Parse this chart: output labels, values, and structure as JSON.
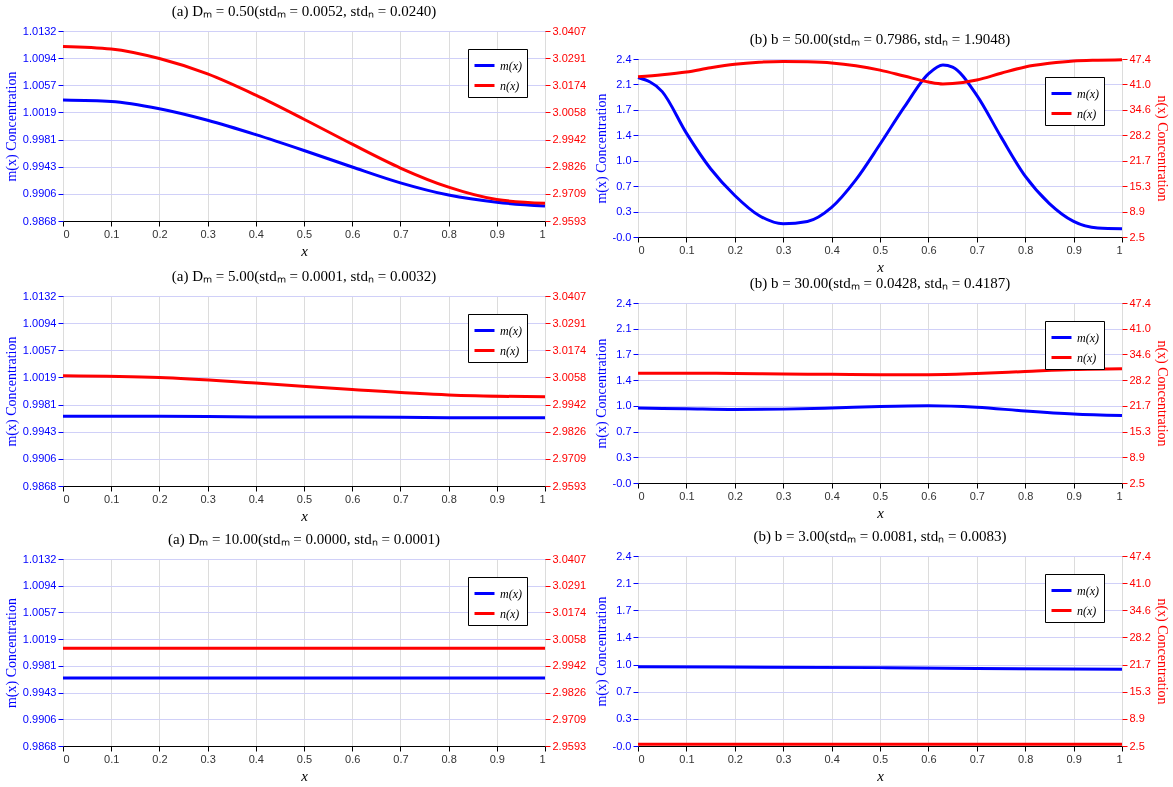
{
  "chart_data": [
    {
      "type": "line",
      "title": "(a) Dₘ = 0.50(stdₘ = 0.0052, stdₙ = 0.0240)",
      "xlabel": "x",
      "ylabel": "m(x) Concentration",
      "xlim": [
        0,
        1
      ],
      "xticks": [
        0,
        0.1,
        0.2,
        0.3,
        0.4,
        0.5,
        0.6,
        0.7,
        0.8,
        0.9,
        1
      ],
      "ylim": [
        0.9868,
        1.0132
      ],
      "yticks": [
        0.9868,
        {
          "value": 0.99057,
          "label": "0.9906"
        },
        {
          "value": 0.99434,
          "label": "0.9943"
        },
        {
          "value": 0.99811,
          "label": "0.9981"
        },
        {
          "value": 1.00189,
          "label": "1.0019"
        },
        {
          "value": 1.00566,
          "label": "1.0057"
        },
        {
          "value": 1.00943,
          "label": "1.0094"
        },
        1.0132
      ],
      "y2lim": [
        2.9593,
        3.0407
      ],
      "y2ticks": [
        2.9593,
        {
          "value": 2.97093,
          "label": "2.9709"
        },
        {
          "value": 2.98256,
          "label": "2.9826"
        },
        {
          "value": 2.99419,
          "label": "2.9942"
        },
        {
          "value": 3.00581,
          "label": "3.0058"
        },
        {
          "value": 3.01744,
          "label": "3.0174"
        },
        {
          "value": 3.02907,
          "label": "3.0291"
        },
        3.0407
      ],
      "grid": true,
      "legend": "top right",
      "x": [
        0,
        0.1,
        0.2,
        0.3,
        0.4,
        0.5,
        0.6,
        0.7,
        0.8,
        0.9,
        1
      ],
      "series": [
        {
          "name": "m(x)",
          "color": "#0000ff",
          "values": [
            1.0036,
            1.0034,
            1.0024,
            1.0008,
            0.9988,
            0.9966,
            0.9943,
            0.9921,
            0.9904,
            0.9894,
            0.9889
          ]
        },
        {
          "name": "n(x)",
          "color": "#ff0000",
          "axis": "y2",
          "values": [
            3.0341,
            3.033,
            3.0289,
            3.0223,
            3.0132,
            3.0029,
            2.9922,
            2.982,
            2.9738,
            2.9685,
            2.9669
          ]
        }
      ]
    },
    {
      "type": "line",
      "title": "(b) b = 50.00(stdₘ = 0.7986, stdₙ = 1.9048)",
      "xlabel": "x",
      "ylabel": "m(x) Concentration",
      "y2label": "n(x) Concentration",
      "xlim": [
        0,
        1
      ],
      "xticks": [
        0,
        0.1,
        0.2,
        0.3,
        0.4,
        0.5,
        0.6,
        0.7,
        0.8,
        0.9,
        1
      ],
      "ylim": [
        0,
        2.4
      ],
      "yticks": [
        {
          "value": 0,
          "label": "-0.0"
        },
        {
          "value": 0.34286,
          "label": "0.3"
        },
        {
          "value": 0.68571,
          "label": "0.7"
        },
        {
          "value": 1.02857,
          "label": "1.0"
        },
        {
          "value": 1.37143,
          "label": "1.4"
        },
        {
          "value": 1.71429,
          "label": "1.7"
        },
        {
          "value": 2.05714,
          "label": "2.1"
        },
        2.4
      ],
      "y2lim": [
        2.5,
        47.4
      ],
      "y2ticks": [
        2.5,
        {
          "value": 8.91429,
          "label": "8.9"
        },
        {
          "value": 15.32857,
          "label": "15.3"
        },
        {
          "value": 21.74286,
          "label": "21.7"
        },
        {
          "value": 28.15714,
          "label": "28.2"
        },
        {
          "value": 34.57143,
          "label": "34.6"
        },
        {
          "value": 40.98571,
          "label": "41.0"
        },
        47.4
      ],
      "grid": true,
      "legend": "top right",
      "x": [
        0,
        0.05,
        0.1,
        0.15,
        0.2,
        0.25,
        0.3,
        0.35,
        0.4,
        0.45,
        0.5,
        0.55,
        0.6,
        0.63,
        0.65,
        0.7,
        0.75,
        0.8,
        0.85,
        0.9,
        0.95,
        1
      ],
      "series": [
        {
          "name": "m(x)",
          "color": "#0000ff",
          "values": [
            2.15,
            1.96,
            1.4,
            0.92,
            0.56,
            0.29,
            0.18,
            0.21,
            0.4,
            0.77,
            1.25,
            1.75,
            2.2,
            2.32,
            2.29,
            1.91,
            1.35,
            0.82,
            0.45,
            0.21,
            0.12,
            0.11
          ]
        },
        {
          "name": "n(x)",
          "color": "#ff0000",
          "axis": "y2",
          "values": [
            42.9,
            43.4,
            44.1,
            45.2,
            46.1,
            46.6,
            46.8,
            46.7,
            46.4,
            45.7,
            44.6,
            43.1,
            41.6,
            41.1,
            41.2,
            42.1,
            43.8,
            45.4,
            46.3,
            46.9,
            47.1,
            47.2
          ]
        }
      ]
    },
    {
      "type": "line",
      "title": "(a) Dₘ = 5.00(stdₘ = 0.0001, stdₙ = 0.0032)",
      "xlabel": "x",
      "ylabel": "m(x) Concentration",
      "xlim": [
        0,
        1
      ],
      "xticks": [
        0,
        0.1,
        0.2,
        0.3,
        0.4,
        0.5,
        0.6,
        0.7,
        0.8,
        0.9,
        1
      ],
      "ylim": [
        0.9868,
        1.0132
      ],
      "yticks": [
        0.9868,
        {
          "value": 0.99057,
          "label": "0.9906"
        },
        {
          "value": 0.99434,
          "label": "0.9943"
        },
        {
          "value": 0.99811,
          "label": "0.9981"
        },
        {
          "value": 1.00189,
          "label": "1.0019"
        },
        {
          "value": 1.00566,
          "label": "1.0057"
        },
        {
          "value": 1.00943,
          "label": "1.0094"
        },
        1.0132
      ],
      "y2lim": [
        2.9593,
        3.0407
      ],
      "y2ticks": [
        2.9593,
        {
          "value": 2.97093,
          "label": "2.9709"
        },
        {
          "value": 2.98256,
          "label": "2.9826"
        },
        {
          "value": 2.99419,
          "label": "2.9942"
        },
        {
          "value": 3.00581,
          "label": "3.0058"
        },
        {
          "value": 3.01744,
          "label": "3.0174"
        },
        {
          "value": 3.02907,
          "label": "3.0291"
        },
        3.0407
      ],
      "grid": true,
      "legend": "top right",
      "x": [
        0,
        0.2,
        0.4,
        0.6,
        0.8,
        1
      ],
      "series": [
        {
          "name": "m(x)",
          "color": "#0000ff",
          "values": [
            0.9965,
            0.9965,
            0.9964,
            0.9964,
            0.9963,
            0.9963
          ]
        },
        {
          "name": "n(x)",
          "color": "#ff0000",
          "axis": "y2",
          "values": [
            3.0065,
            3.0058,
            3.0034,
            3.0006,
            2.9983,
            2.9975
          ]
        }
      ]
    },
    {
      "type": "line",
      "title": "(b) b = 30.00(stdₘ = 0.0428, stdₙ = 0.4187)",
      "xlabel": "x",
      "ylabel": "m(x) Concentration",
      "y2label": "n(x) Concentration",
      "xlim": [
        0,
        1
      ],
      "xticks": [
        0,
        0.1,
        0.2,
        0.3,
        0.4,
        0.5,
        0.6,
        0.7,
        0.8,
        0.9,
        1
      ],
      "ylim": [
        0,
        2.4
      ],
      "yticks": [
        {
          "value": 0,
          "label": "-0.0"
        },
        {
          "value": 0.34286,
          "label": "0.3"
        },
        {
          "value": 0.68571,
          "label": "0.7"
        },
        {
          "value": 1.02857,
          "label": "1.0"
        },
        {
          "value": 1.37143,
          "label": "1.4"
        },
        {
          "value": 1.71429,
          "label": "1.7"
        },
        {
          "value": 2.05714,
          "label": "2.1"
        },
        2.4
      ],
      "y2lim": [
        2.5,
        47.4
      ],
      "y2ticks": [
        2.5,
        {
          "value": 8.91429,
          "label": "8.9"
        },
        {
          "value": 15.32857,
          "label": "15.3"
        },
        {
          "value": 21.74286,
          "label": "21.7"
        },
        {
          "value": 28.15714,
          "label": "28.2"
        },
        {
          "value": 34.57143,
          "label": "34.6"
        },
        {
          "value": 40.98571,
          "label": "41.0"
        },
        47.4
      ],
      "grid": true,
      "legend": "top right",
      "x": [
        0,
        0.1,
        0.2,
        0.3,
        0.4,
        0.5,
        0.6,
        0.7,
        0.8,
        0.9,
        1
      ],
      "series": [
        {
          "name": "m(x)",
          "color": "#0000ff",
          "values": [
            1.0,
            0.99,
            0.98,
            0.985,
            1.0,
            1.02,
            1.03,
            1.01,
            0.96,
            0.92,
            0.9
          ]
        },
        {
          "name": "n(x)",
          "color": "#ff0000",
          "axis": "y2",
          "values": [
            29.9,
            29.9,
            29.8,
            29.7,
            29.6,
            29.5,
            29.5,
            29.8,
            30.3,
            30.8,
            31.0
          ]
        }
      ]
    },
    {
      "type": "line",
      "title": "(a) Dₘ = 10.00(stdₘ = 0.0000, stdₙ = 0.0001)",
      "xlabel": "x",
      "ylabel": "m(x) Concentration",
      "xlim": [
        0,
        1
      ],
      "xticks": [
        0,
        0.1,
        0.2,
        0.3,
        0.4,
        0.5,
        0.6,
        0.7,
        0.8,
        0.9,
        1
      ],
      "ylim": [
        0.9868,
        1.0132
      ],
      "yticks": [
        0.9868,
        {
          "value": 0.99057,
          "label": "0.9906"
        },
        {
          "value": 0.99434,
          "label": "0.9943"
        },
        {
          "value": 0.99811,
          "label": "0.9981"
        },
        {
          "value": 1.00189,
          "label": "1.0019"
        },
        {
          "value": 1.00566,
          "label": "1.0057"
        },
        {
          "value": 1.00943,
          "label": "1.0094"
        },
        1.0132
      ],
      "y2lim": [
        2.9593,
        3.0407
      ],
      "y2ticks": [
        2.9593,
        {
          "value": 2.97093,
          "label": "2.9709"
        },
        {
          "value": 2.98256,
          "label": "2.9826"
        },
        {
          "value": 2.99419,
          "label": "2.9942"
        },
        {
          "value": 3.00581,
          "label": "3.0058"
        },
        {
          "value": 3.01744,
          "label": "3.0174"
        },
        {
          "value": 3.02907,
          "label": "3.0291"
        },
        3.0407
      ],
      "grid": true,
      "legend": "top right",
      "x": [
        0,
        0.5,
        1
      ],
      "series": [
        {
          "name": "m(x)",
          "color": "#0000ff",
          "values": [
            0.9964,
            0.9964,
            0.9964
          ]
        },
        {
          "name": "n(x)",
          "color": "#ff0000",
          "axis": "y2",
          "values": [
            3.0019,
            3.0019,
            3.0018
          ]
        }
      ]
    },
    {
      "type": "line",
      "title": "(b) b = 3.00(stdₘ = 0.0081, stdₙ = 0.0083)",
      "xlabel": "x",
      "ylabel": "m(x) Concentration",
      "y2label": "n(x) Concentration",
      "xlim": [
        0,
        1
      ],
      "xticks": [
        0,
        0.1,
        0.2,
        0.3,
        0.4,
        0.5,
        0.6,
        0.7,
        0.8,
        0.9,
        1
      ],
      "ylim": [
        0,
        2.4
      ],
      "yticks": [
        {
          "value": 0,
          "label": "-0.0"
        },
        {
          "value": 0.34286,
          "label": "0.3"
        },
        {
          "value": 0.68571,
          "label": "0.7"
        },
        {
          "value": 1.02857,
          "label": "1.0"
        },
        {
          "value": 1.37143,
          "label": "1.4"
        },
        {
          "value": 1.71429,
          "label": "1.7"
        },
        {
          "value": 2.05714,
          "label": "2.1"
        },
        2.4
      ],
      "y2lim": [
        2.5,
        47.4
      ],
      "y2ticks": [
        2.5,
        {
          "value": 8.91429,
          "label": "8.9"
        },
        {
          "value": 15.32857,
          "label": "15.3"
        },
        {
          "value": 21.74286,
          "label": "21.7"
        },
        {
          "value": 28.15714,
          "label": "28.2"
        },
        {
          "value": 34.57143,
          "label": "34.6"
        },
        {
          "value": 40.98571,
          "label": "41.0"
        },
        47.4
      ],
      "grid": true,
      "legend": "top right",
      "x": [
        0,
        0.5,
        0.7,
        1
      ],
      "series": [
        {
          "name": "m(x)",
          "color": "#0000ff",
          "values": [
            1.0,
            0.99,
            0.98,
            0.97
          ]
        },
        {
          "name": "n(x)",
          "color": "#ff0000",
          "axis": "y2",
          "values": [
            2.9,
            2.9,
            2.9,
            2.9
          ]
        }
      ]
    }
  ]
}
